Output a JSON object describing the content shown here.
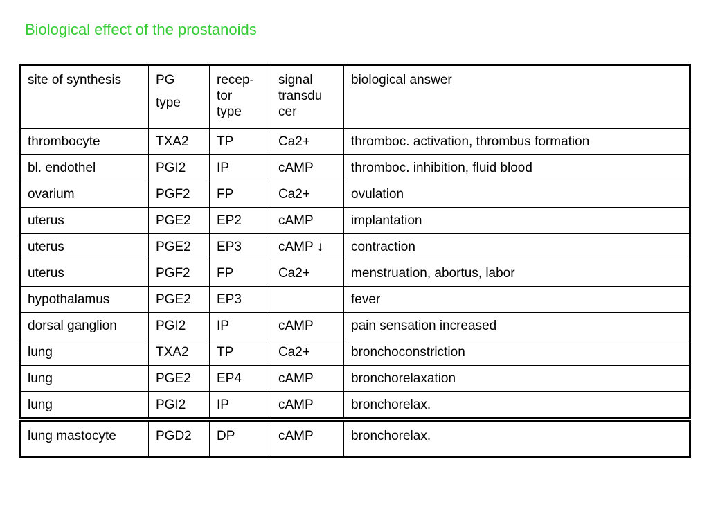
{
  "title": "Biological effect of the prostanoids",
  "header": {
    "site": "site of synthesis",
    "pg": [
      "PG",
      "type"
    ],
    "receptor": [
      "recep-",
      "tor",
      "type"
    ],
    "signal": [
      "signal",
      "transdu",
      "cer"
    ],
    "bio": "biological answer"
  },
  "rows": [
    {
      "site": "thrombocyte",
      "pg": "TXA2",
      "receptor": "TP",
      "signal": "Ca2+",
      "bio": "thromboc. activation, thrombus formation"
    },
    {
      "site": "bl. endothel",
      "pg": "PGI2",
      "receptor": "IP",
      "signal": "cAMP",
      "bio": "thromboc. inhibition, fluid blood"
    },
    {
      "site": "ovarium",
      "pg": "PGF2",
      "receptor": "FP",
      "signal": "Ca2+",
      "bio": "ovulation"
    },
    {
      "site": "uterus",
      "pg": "PGE2",
      "receptor": "EP2",
      "signal": "cAMP",
      "bio": "implantation"
    },
    {
      "site": "uterus",
      "pg": "PGE2",
      "receptor": "EP3",
      "signal": "cAMP ↓",
      "bio": "contraction"
    },
    {
      "site": "uterus",
      "pg": "PGF2",
      "receptor": "FP",
      "signal": "Ca2+",
      "bio": "menstruation, abortus, labor"
    },
    {
      "site": "hypothalamus",
      "pg": "PGE2",
      "receptor": "EP3",
      "signal": "",
      "bio": "fever"
    },
    {
      "site": "dorsal ganglion",
      "pg": "PGI2",
      "receptor": "IP",
      "signal": "cAMP",
      "bio": "pain sensation increased"
    },
    {
      "site": "lung",
      "pg": "TXA2",
      "receptor": "TP",
      "signal": "Ca2+",
      "bio": "bronchoconstriction"
    },
    {
      "site": "lung",
      "pg": "PGE2",
      "receptor": "EP4",
      "signal": "cAMP",
      "bio": "bronchorelaxation"
    },
    {
      "site": "lung",
      "pg": "PGI2",
      "receptor": "IP",
      "signal": "cAMP",
      "bio": "bronchorelax."
    }
  ],
  "extra_row": {
    "site": "lung mastocyte",
    "pg": "PGD2",
    "receptor": "DP",
    "signal": "cAMP",
    "bio": "bronchorelax."
  }
}
